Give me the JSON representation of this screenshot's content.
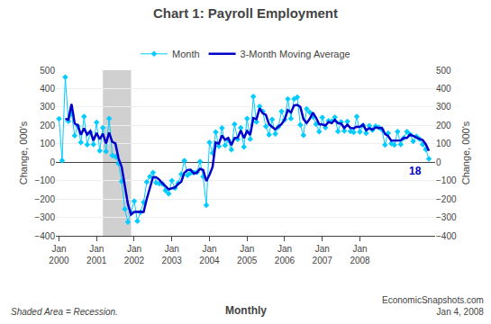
{
  "chart_data": {
    "type": "line",
    "title": "Chart 1: Payroll Employment",
    "ylabel": "Change, 000's",
    "y2label": "Change, 000's",
    "categories": [
      "Jan\n2000",
      null,
      null,
      null,
      null,
      null,
      null,
      null,
      null,
      null,
      null,
      null,
      "Jan\n2001",
      null,
      null,
      null,
      null,
      null,
      null,
      null,
      null,
      null,
      null,
      null,
      "Jan\n2002",
      null,
      null,
      null,
      null,
      null,
      null,
      null,
      null,
      null,
      null,
      null,
      "Jan\n2003",
      null,
      null,
      null,
      null,
      null,
      null,
      null,
      null,
      null,
      null,
      null,
      "Jan\n2004",
      null,
      null,
      null,
      null,
      null,
      null,
      null,
      null,
      null,
      null,
      null,
      "Jan\n2005",
      null,
      null,
      null,
      null,
      null,
      null,
      null,
      null,
      null,
      null,
      null,
      "Jan\n2006",
      null,
      null,
      null,
      null,
      null,
      null,
      null,
      null,
      null,
      null,
      null,
      "Jan\n2007",
      null,
      null,
      null,
      null,
      null,
      null,
      null,
      null,
      null,
      null,
      null,
      "Jan\n2008",
      null,
      null,
      null,
      null,
      null,
      null,
      null,
      null,
      null,
      null,
      null,
      null,
      null,
      null,
      null,
      null,
      null,
      null,
      null,
      null,
      null,
      null
    ],
    "series": [
      {
        "name": "Month",
        "color": "#00CCFF",
        "marker": "diamond",
        "line_style": "solid",
        "values": [
          236,
          10,
          462,
          222,
          264,
          144,
          195,
          108,
          248,
          95,
          163,
          96,
          216,
          62,
          187,
          58,
          237,
          37,
          31,
          -7,
          -104,
          -255,
          -325,
          -274,
          -212,
          -321,
          -272,
          -218,
          -108,
          -78,
          -56,
          -112,
          -116,
          -117,
          -154,
          -171,
          -100,
          -141,
          -114,
          -65,
          8,
          -71,
          -59,
          -56,
          -55,
          4,
          -78,
          -234,
          107,
          50,
          164,
          87,
          186,
          92,
          118,
          68,
          207,
          124,
          187,
          83,
          237,
          126,
          357,
          219,
          303,
          276,
          194,
          149,
          232,
          154,
          192,
          276,
          231,
          344,
          237,
          344,
          353,
          203,
          146,
          290,
          271,
          247,
          207,
          166,
          243,
          188,
          225,
          223,
          244,
          168,
          219,
          170,
          221,
          168,
          163,
          248,
          165,
          200,
          157,
          198,
          175,
          195,
          189,
          177,
          94,
          157,
          101,
          94,
          166,
          97,
          132,
          166,
          152,
          113,
          140,
          126,
          97,
          70,
          18
        ]
      },
      {
        "name": "3-Month Moving Average",
        "color": "#0000CC",
        "line_style": "solid",
        "values": [
          null,
          null,
          236,
          231.33,
          316,
          210,
          201,
          149,
          183.67,
          150.33,
          168.67,
          118,
          158.33,
          124.67,
          155,
          102.33,
          160.67,
          110.67,
          101.67,
          20.33,
          -26.67,
          -122,
          -228,
          -284.67,
          -270.33,
          -269,
          -268.33,
          -270.33,
          -199.33,
          -134.67,
          -80.67,
          -82,
          -94.67,
          -115,
          -129,
          -147.33,
          -141.67,
          -137.33,
          -118.33,
          -106.67,
          -57,
          -42.67,
          -40.67,
          -62,
          -56.67,
          -35.67,
          -43,
          -102.67,
          -68.33,
          -25.67,
          107,
          100.33,
          145.67,
          121.67,
          132,
          92.67,
          131,
          133,
          172.67,
          131.33,
          169,
          148.67,
          240,
          234,
          293,
          266,
          257.67,
          206.33,
          191.67,
          178.33,
          192.67,
          207.33,
          233,
          283.67,
          270.67,
          308.33,
          311.33,
          300,
          234,
          213,
          235.67,
          269.33,
          241.67,
          206.67,
          205.33,
          199,
          218.67,
          212,
          230.67,
          211.67,
          210.33,
          185.67,
          203.33,
          186.33,
          184,
          193,
          192,
          204.33,
          174,
          185,
          176.67,
          189.33,
          186.33,
          187,
          153.33,
          142.67,
          117.33,
          117.33,
          120.33,
          119,
          131.67,
          131.67,
          150,
          143.67,
          135,
          126.33,
          121,
          97.67,
          61.67
        ]
      }
    ],
    "xlim": [
      -1,
      120
    ],
    "ylim": [
      -400,
      500
    ],
    "yticks": [
      -400,
      -300,
      -200,
      -100,
      0,
      100,
      200,
      300,
      400,
      500
    ],
    "y2lim": [
      -400,
      500
    ],
    "y2ticks": [
      -400,
      -300,
      -200,
      -100,
      0,
      100,
      200,
      300,
      400,
      500
    ],
    "grid": true,
    "legend": "top",
    "recession": {
      "start": 14,
      "end": 23
    },
    "annotations": [
      {
        "text": "18",
        "value": 18
      }
    ],
    "footer": [
      "Shaded Area = Recession.",
      "Monthly",
      "EconomicSnapshots.com\nJan 4, 2008"
    ]
  }
}
